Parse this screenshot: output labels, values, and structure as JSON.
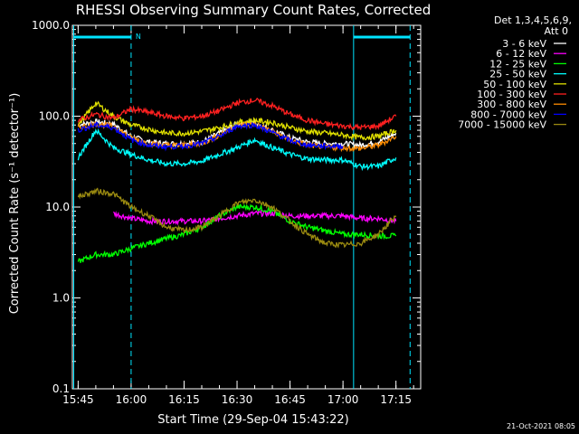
{
  "title": "RHESSI Observing Summary Count Rates, Corrected",
  "ylabel": "Corrected Count Rate (s⁻¹ detector⁻¹)",
  "xlabel": "Start Time (29-Sep-04 15:43:22)",
  "legend_header": [
    "Det 1,3,4,5,6,9,",
    "Att 0"
  ],
  "footer": "21-Oct-2021 08:05",
  "flag_label": "N",
  "colors": {
    "background": "#000000",
    "axes": "#ffffff",
    "marker": "#00e5ff"
  },
  "chart_data": {
    "type": "line",
    "title": "RHESSI Observing Summary Count Rates, Corrected",
    "xlabel": "Start Time (29-Sep-04 15:43:22)",
    "ylabel": "Corrected Count Rate (s⁻¹ detector⁻¹)",
    "yscale": "log",
    "xlim": [
      "15:43:22",
      "17:22:00"
    ],
    "ylim": [
      0.1,
      1000
    ],
    "x_ticks": [
      "15:45",
      "16:00",
      "16:15",
      "16:30",
      "16:45",
      "17:00",
      "17:15"
    ],
    "y_ticks": [
      "0.1",
      "1.0",
      "10.0",
      "100.0",
      "1000.0"
    ],
    "legend_placement": "outside-right",
    "markers": {
      "solid_lines": [
        "15:43:45",
        "17:03:00"
      ],
      "dashed_lines": [
        "16:00:00",
        "17:19:00"
      ],
      "flag_bars": [
        [
          "15:43:45",
          "16:00:00"
        ],
        [
          "17:03:00",
          "17:19:00"
        ]
      ]
    },
    "series": [
      {
        "name": "3 - 6 keV",
        "color": "#ffffff",
        "x": [
          "15:45",
          "15:50",
          "15:55",
          "16:00",
          "16:05",
          "16:10",
          "16:15",
          "16:20",
          "16:25",
          "16:30",
          "16:35",
          "16:40",
          "16:45",
          "16:50",
          "16:55",
          "17:00",
          "17:05",
          "17:10",
          "17:15"
        ],
        "values": [
          80,
          87,
          82,
          60,
          52,
          50,
          50,
          52,
          65,
          82,
          85,
          70,
          58,
          52,
          50,
          50,
          48,
          52,
          65
        ]
      },
      {
        "name": "6 - 12 keV",
        "color": "#ff00ff",
        "x": [
          "15:55",
          "16:00",
          "16:05",
          "16:10",
          "16:15",
          "16:20",
          "16:25",
          "16:30",
          "16:35",
          "16:40",
          "16:45",
          "16:50",
          "16:55",
          "17:00",
          "17:05",
          "17:10",
          "17:15"
        ],
        "values": [
          8.5,
          7.5,
          7,
          7,
          7,
          7,
          7.5,
          8,
          8.5,
          8.5,
          8,
          8,
          8,
          8,
          7.5,
          7.5,
          7
        ]
      },
      {
        "name": "12 - 25 keV",
        "color": "#00ff00",
        "x": [
          "15:45",
          "15:50",
          "15:55",
          "16:00",
          "16:05",
          "16:10",
          "16:15",
          "16:20",
          "16:25",
          "16:30",
          "16:35",
          "16:40",
          "16:45",
          "16:50",
          "16:55",
          "17:00",
          "17:05",
          "17:10",
          "17:15"
        ],
        "values": [
          2.5,
          3,
          3,
          3.5,
          4,
          4.5,
          5,
          6,
          8,
          10,
          10,
          9,
          7,
          6,
          5.5,
          5,
          5,
          4.8,
          4.8
        ]
      },
      {
        "name": "25 - 50 keV",
        "color": "#00ffff",
        "x": [
          "15:45",
          "15:50",
          "15:55",
          "16:00",
          "16:05",
          "16:10",
          "16:15",
          "16:20",
          "16:25",
          "16:30",
          "16:35",
          "16:40",
          "16:45",
          "16:50",
          "16:55",
          "17:00",
          "17:05",
          "17:10",
          "17:15"
        ],
        "values": [
          35,
          70,
          45,
          38,
          33,
          30,
          30,
          32,
          38,
          45,
          55,
          45,
          38,
          34,
          33,
          33,
          28,
          28,
          35
        ]
      },
      {
        "name": "50 - 100 keV",
        "color": "#e0e000",
        "x": [
          "15:45",
          "15:50",
          "15:55",
          "16:00",
          "16:05",
          "16:10",
          "16:15",
          "16:20",
          "16:25",
          "16:30",
          "16:35",
          "16:40",
          "16:45",
          "16:50",
          "16:55",
          "17:00",
          "17:05",
          "17:10",
          "17:15"
        ],
        "values": [
          80,
          140,
          100,
          80,
          72,
          65,
          65,
          68,
          75,
          85,
          90,
          85,
          75,
          68,
          65,
          62,
          58,
          60,
          70
        ]
      },
      {
        "name": "100 - 300 keV",
        "color": "#ff2020",
        "x": [
          "15:45",
          "15:50",
          "15:55",
          "16:00",
          "16:05",
          "16:10",
          "16:15",
          "16:20",
          "16:25",
          "16:30",
          "16:35",
          "16:40",
          "16:45",
          "16:50",
          "16:55",
          "17:00",
          "17:05",
          "17:10",
          "17:15"
        ],
        "values": [
          90,
          105,
          95,
          120,
          110,
          100,
          95,
          100,
          115,
          140,
          150,
          130,
          105,
          90,
          82,
          78,
          75,
          78,
          100
        ]
      },
      {
        "name": "300 - 800 keV",
        "color": "#ff8c00",
        "x": [
          "15:45",
          "15:50",
          "15:55",
          "16:00",
          "16:05",
          "16:10",
          "16:15",
          "16:20",
          "16:25",
          "16:30",
          "16:35",
          "16:40",
          "16:45",
          "16:50",
          "16:55",
          "17:00",
          "17:05",
          "17:10",
          "17:15"
        ],
        "values": [
          75,
          82,
          78,
          58,
          50,
          48,
          48,
          50,
          62,
          80,
          82,
          68,
          55,
          48,
          46,
          45,
          44,
          48,
          60
        ]
      },
      {
        "name": "800 - 7000 keV",
        "color": "#0000ff",
        "x": [
          "15:45",
          "15:50",
          "15:55",
          "16:00",
          "16:05",
          "16:10",
          "16:15",
          "16:20",
          "16:25",
          "16:30",
          "16:35",
          "16:40",
          "16:45",
          "16:50",
          "16:55",
          "17:00"
        ],
        "values": [
          70,
          80,
          75,
          55,
          48,
          46,
          47,
          50,
          60,
          78,
          80,
          66,
          54,
          48,
          47,
          47
        ]
      },
      {
        "name": "7000 - 15000 keV",
        "color": "#9a8a10",
        "x": [
          "15:45",
          "15:50",
          "15:55",
          "16:00",
          "16:05",
          "16:10",
          "16:15",
          "16:20",
          "16:25",
          "16:30",
          "16:35",
          "16:40",
          "16:45",
          "16:50",
          "16:55",
          "17:00",
          "17:05",
          "17:10",
          "17:15"
        ],
        "values": [
          13,
          15,
          14,
          10,
          8,
          6,
          5.5,
          6,
          8,
          11,
          12,
          10,
          7,
          5,
          4,
          3.8,
          4,
          5,
          8
        ]
      }
    ]
  }
}
